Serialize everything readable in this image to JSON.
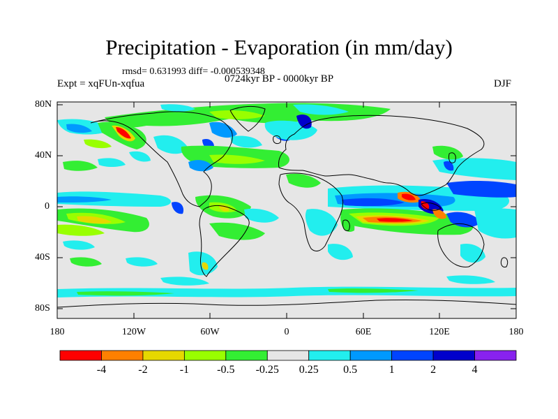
{
  "title": "Precipitation - Evaporation (in mm/day)",
  "stats": "rmsd= 0.631993 diff= -0.000539348",
  "period": "0724kyr BP - 0000kyr BP",
  "experiment": "Expt = xqFUn-xqfua",
  "season": "DJF",
  "x_ticks": [
    "180",
    "120W",
    "60W",
    "0",
    "60E",
    "120E",
    "180"
  ],
  "y_ticks": [
    "80N",
    "40N",
    "0",
    "40S",
    "80S"
  ],
  "colorbar": {
    "labels": [
      "-4",
      "-2",
      "-1",
      "-0.5",
      "-0.25",
      "0.25",
      "0.5",
      "1",
      "2",
      "4"
    ],
    "colors": [
      "#ff0000",
      "#ff8000",
      "#e6d800",
      "#99ff00",
      "#33ee33",
      "#e6e6e6",
      "#22eeee",
      "#0099ff",
      "#0044ff",
      "#0000cc",
      "#8822ee"
    ]
  },
  "ocean_color": "#e6e6e6"
}
